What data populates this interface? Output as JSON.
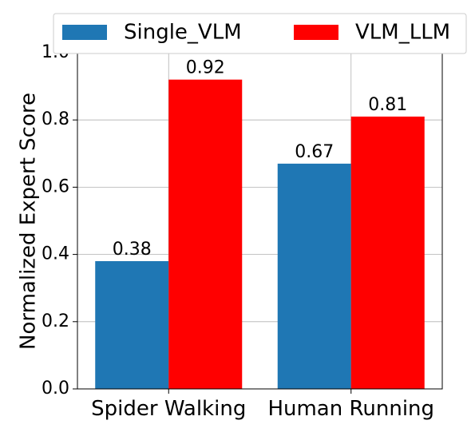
{
  "chart_data": {
    "type": "bar",
    "title": "",
    "xlabel": "",
    "ylabel": "Normalized Expert Score",
    "ylim": [
      0,
      1.0
    ],
    "yticks": [
      "0.0",
      "0.2",
      "0.4",
      "0.6",
      "0.8",
      "1.0"
    ],
    "categories": [
      "Spider Walking",
      "Human Running"
    ],
    "series": [
      {
        "name": "Single_VLM",
        "values": [
          0.38,
          0.67
        ],
        "labels": [
          "0.38",
          "0.67"
        ],
        "color": "#1f77b4"
      },
      {
        "name": "VLM_LLM",
        "values": [
          0.92,
          0.81
        ],
        "labels": [
          "0.92",
          "0.81"
        ],
        "color": "#ff0000"
      }
    ],
    "grid": true,
    "legend_position": "top"
  }
}
